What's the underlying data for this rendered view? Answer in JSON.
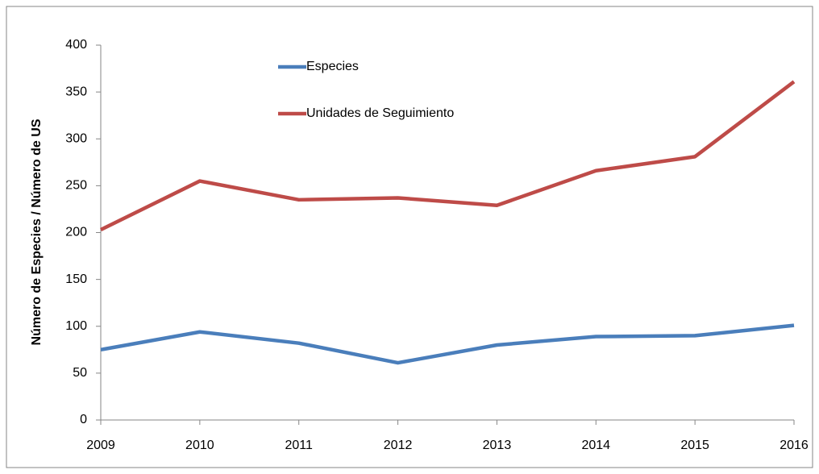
{
  "chart_data": {
    "type": "line",
    "y_label": "Número de Especies / Número de US",
    "x": [
      2009,
      2010,
      2011,
      2012,
      2013,
      2014,
      2015,
      2016
    ],
    "xlim": [
      2009,
      2016
    ],
    "xticks": [
      2009,
      2010,
      2011,
      2012,
      2013,
      2014,
      2015,
      2016
    ],
    "ylim": [
      0,
      400
    ],
    "yticks": [
      0,
      50,
      100,
      150,
      200,
      250,
      300,
      350,
      400
    ],
    "grid": false,
    "series": [
      {
        "name": "Especies",
        "color": "#4a7ebb",
        "values": [
          75,
          94,
          82,
          61,
          80,
          89,
          90,
          101
        ]
      },
      {
        "name": "Unidades de Seguimiento",
        "color": "#be4b48",
        "values": [
          203,
          255,
          235,
          237,
          229,
          266,
          281,
          361
        ]
      }
    ]
  }
}
